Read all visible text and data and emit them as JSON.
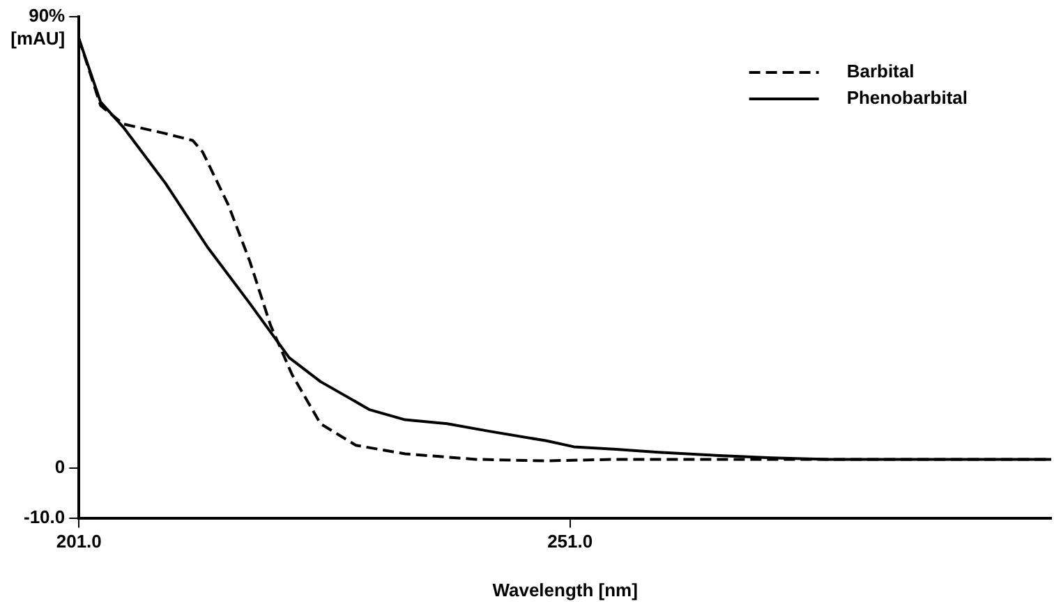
{
  "chart_data": {
    "type": "line",
    "xlabel": "Wavelength [nm]",
    "ylabel": "[mAU]",
    "xlim": [
      201,
      300
    ],
    "xticks": [
      {
        "value": 201,
        "label": "201.0"
      },
      {
        "value": 251,
        "label": "251.0"
      }
    ],
    "ylim": [
      -10,
      90
    ],
    "yticks": [
      {
        "value": -10,
        "label": "-10.0"
      },
      0,
      {
        "value": 90,
        "label": "90%"
      }
    ],
    "grid": false,
    "legend": "top right",
    "marker": "none",
    "series": [
      {
        "name": "Barbital",
        "color": "#000000",
        "line_style": "dashed",
        "x": [
          201,
          203.2,
          205.5,
          209.8,
          212.6,
          213.6,
          216.2,
          218.4,
          220.5,
          222.7,
          225.6,
          229.2,
          234.2,
          241.4,
          248.6,
          255.7,
          261.9,
          277.3,
          300
        ],
        "values": [
          85.6,
          72.3,
          68.6,
          66.7,
          65.3,
          63,
          52.5,
          41.2,
          28.5,
          18.6,
          8.8,
          4.5,
          2.8,
          1.7,
          1.4,
          1.7,
          1.7,
          1.7,
          1.7
        ]
      },
      {
        "name": "Phenobarbital",
        "color": "#000000",
        "line_style": "solid",
        "x": [
          201,
          203.2,
          205.5,
          209.8,
          214.1,
          218.4,
          222.4,
          225.6,
          230.6,
          234.2,
          238.5,
          242.8,
          248.6,
          251.4,
          255.7,
          260,
          265.8,
          271.5,
          277.3,
          300
        ],
        "values": [
          85.6,
          73,
          68,
          56.8,
          44,
          32.8,
          22,
          17.2,
          11.6,
          9.6,
          8.8,
          7.3,
          5.4,
          4.2,
          3.7,
          3.1,
          2.5,
          2,
          1.7,
          1.7
        ]
      }
    ]
  }
}
